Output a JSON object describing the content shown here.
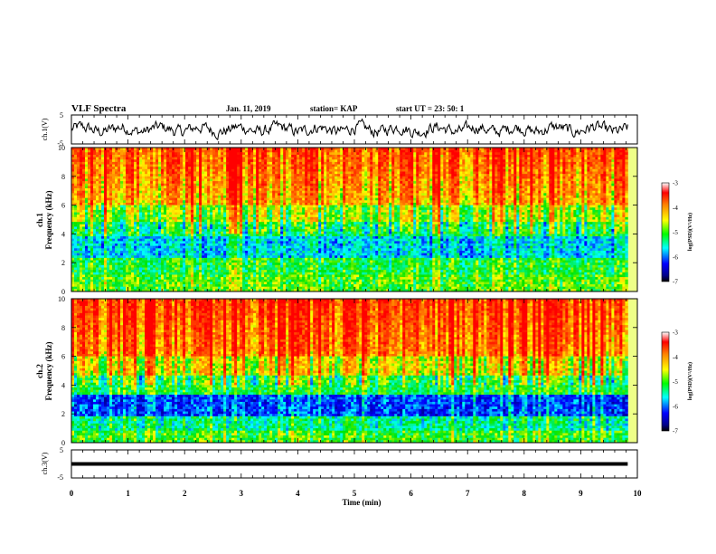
{
  "header": {
    "title": "VLF Spectra",
    "date": "Jan. 11, 2019",
    "station": "station= KAP",
    "start": "start  UT =   23: 50: 1"
  },
  "panels": {
    "ch1_wave_ylabel": "ch.1(V)",
    "ch1_spec_ylabel_1": "ch.1",
    "ch1_spec_ylabel_2": "Frequency (kHz)",
    "ch2_spec_ylabel_1": "ch.2",
    "ch2_spec_ylabel_2": "Frequency (kHz)",
    "ch3_wave_ylabel": "ch.3(V)",
    "xlabel": "Time (min)",
    "colorbar_label": "log(PSD)(V²/Hz)"
  },
  "chart_data": [
    {
      "type": "line",
      "panel": "ch1-waveform",
      "ylabel": "ch.1(V)",
      "xlim": [
        0,
        10
      ],
      "ylim": [
        -5,
        5
      ],
      "y_ticks": [
        "5",
        "-5"
      ],
      "description_values": {
        "x_end": 9.83,
        "mean": 0,
        "amplitude_approx": 2.5
      }
    },
    {
      "type": "heatmap",
      "panel": "ch1-spectrogram",
      "ylabel": "Frequency (kHz)",
      "xlim": [
        0,
        10
      ],
      "ylim": [
        0,
        10
      ],
      "y_ticks": [
        "0",
        "2",
        "4",
        "6",
        "8",
        "10"
      ],
      "colorbar": {
        "min": -7,
        "max": -3,
        "ticks": [
          "-3",
          "-4",
          "-5",
          "-6",
          "-7"
        ]
      }
    },
    {
      "type": "heatmap",
      "panel": "ch2-spectrogram",
      "ylabel": "Frequency (kHz)",
      "xlim": [
        0,
        10
      ],
      "ylim": [
        0,
        10
      ],
      "y_ticks": [
        "0",
        "2",
        "4",
        "6",
        "8",
        "10"
      ],
      "colorbar": {
        "min": -7,
        "max": -3,
        "ticks": [
          "-3",
          "-4",
          "-5",
          "-6",
          "-7"
        ]
      }
    },
    {
      "type": "line",
      "panel": "ch3-waveform",
      "ylabel": "ch.3(V)",
      "xlim": [
        0,
        10
      ],
      "ylim": [
        -5,
        5
      ],
      "y_ticks": [
        "5",
        "-5"
      ],
      "constant_value": 0
    }
  ],
  "x_ticks": [
    "0",
    "1",
    "2",
    "3",
    "4",
    "5",
    "6",
    "7",
    "8",
    "9",
    "10"
  ]
}
